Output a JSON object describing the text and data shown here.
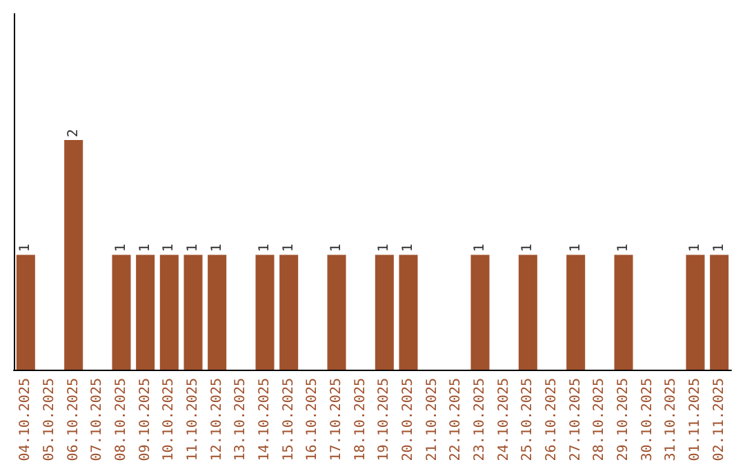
{
  "chart_data": {
    "type": "bar",
    "categories": [
      "04.10.2025",
      "05.10.2025",
      "06.10.2025",
      "07.10.2025",
      "08.10.2025",
      "09.10.2025",
      "10.10.2025",
      "11.10.2025",
      "12.10.2025",
      "13.10.2025",
      "14.10.2025",
      "15.10.2025",
      "16.10.2025",
      "17.10.2025",
      "18.10.2025",
      "19.10.2025",
      "20.10.2025",
      "21.10.2025",
      "22.10.2025",
      "23.10.2025",
      "24.10.2025",
      "25.10.2025",
      "26.10.2025",
      "27.10.2025",
      "28.10.2025",
      "29.10.2025",
      "30.10.2025",
      "31.10.2025",
      "01.11.2025",
      "02.11.2025"
    ],
    "values": [
      1,
      0,
      2,
      0,
      1,
      1,
      1,
      1,
      1,
      0,
      1,
      1,
      0,
      1,
      0,
      1,
      1,
      0,
      0,
      1,
      0,
      1,
      0,
      1,
      0,
      1,
      0,
      0,
      1,
      1
    ],
    "value_labels": [
      "1",
      null,
      "2",
      null,
      "1",
      "1",
      "1",
      "1",
      "1",
      null,
      "1",
      "1",
      null,
      "1",
      null,
      "1",
      "1",
      null,
      null,
      "1",
      null,
      "1",
      null,
      "1",
      null,
      "1",
      null,
      null,
      "1",
      "1"
    ],
    "color": "#a0522d",
    "ylim": [
      0,
      3.1
    ],
    "tick_labels": "x",
    "grid": false
  }
}
